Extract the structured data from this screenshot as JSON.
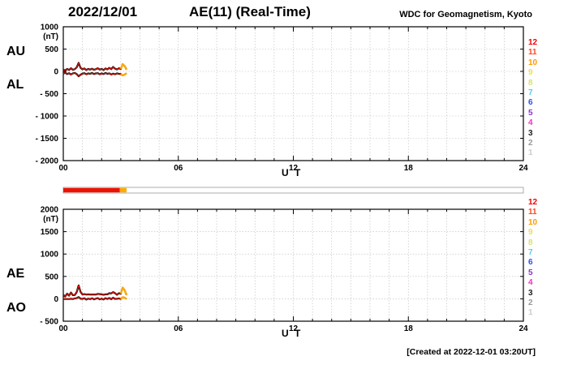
{
  "header": {
    "date": "2022/12/01",
    "title": "AE(11) (Real-Time)",
    "source": "WDC for Geomagnetism, Kyoto"
  },
  "footer": {
    "created": "[Created at 2022-12-01 03:20UT]"
  },
  "panels": [
    {
      "left_labels": [
        "AU",
        "AL"
      ]
    },
    {
      "left_labels": [
        "AE",
        "AO"
      ]
    }
  ],
  "legend": {
    "items": [
      {
        "n": "12",
        "color": "#ee0000"
      },
      {
        "n": "11",
        "color": "#ff4422"
      },
      {
        "n": "10",
        "color": "#ff9900"
      },
      {
        "n": "9",
        "color": "#eedd55"
      },
      {
        "n": "8",
        "color": "#d8e070"
      },
      {
        "n": "7",
        "color": "#55ccee"
      },
      {
        "n": "6",
        "color": "#2b50ee"
      },
      {
        "n": "5",
        "color": "#8833cc"
      },
      {
        "n": "4",
        "color": "#ee33bb"
      },
      {
        "n": "3",
        "color": "#222222"
      },
      {
        "n": "2",
        "color": "#999999"
      },
      {
        "n": "1",
        "color": "#cccccc"
      }
    ]
  },
  "colorbar": {
    "range_hours": 24,
    "segments": [
      {
        "from_hour": 0,
        "to_hour": 2.95,
        "color": "#ee1100"
      },
      {
        "from_hour": 2.95,
        "to_hour": 3.3,
        "color": "#ffaa00"
      }
    ]
  },
  "chart_data": [
    {
      "type": "line",
      "title": "AU / AL auroral electrojet indices",
      "xlabel": "U T",
      "ylabel": "(nT)",
      "xlim": [
        0,
        24
      ],
      "xticks": [
        0,
        6,
        12,
        18,
        24
      ],
      "xtick_labels": [
        "00",
        "06",
        "12",
        "18",
        "24"
      ],
      "ylim": [
        -2000,
        1000
      ],
      "ytick_step": 500,
      "ytick_labels_top_to_bottom": [
        "1000",
        "500",
        "0",
        "- 500",
        "- 1000",
        "- 1500",
        "- 2000"
      ],
      "grid": true,
      "recent_from_hour": 2.95,
      "colors": {
        "outline": "#000000",
        "line": "#ee1100",
        "recent": "#ffaa00"
      },
      "x": [
        0,
        0.1,
        0.2,
        0.3,
        0.4,
        0.5,
        0.6,
        0.7,
        0.8,
        0.9,
        1,
        1.1,
        1.2,
        1.3,
        1.4,
        1.5,
        1.6,
        1.7,
        1.8,
        1.9,
        2,
        2.1,
        2.2,
        2.3,
        2.4,
        2.5,
        2.6,
        2.7,
        2.8,
        2.9,
        3,
        3.1,
        3.2,
        3.3
      ],
      "series": [
        {
          "name": "AU",
          "values": [
            40,
            20,
            55,
            30,
            70,
            35,
            50,
            90,
            190,
            80,
            45,
            65,
            30,
            55,
            40,
            60,
            35,
            50,
            70,
            40,
            55,
            30,
            65,
            45,
            80,
            50,
            100,
            60,
            45,
            70,
            55,
            160,
            120,
            40
          ]
        },
        {
          "name": "AL",
          "values": [
            -50,
            -30,
            -60,
            -40,
            -70,
            -45,
            -35,
            -60,
            -110,
            -75,
            -50,
            -40,
            -65,
            -45,
            -55,
            -35,
            -60,
            -45,
            -40,
            -65,
            -45,
            -60,
            -35,
            -55,
            -45,
            -70,
            -50,
            -65,
            -45,
            -55,
            -60,
            -90,
            -70,
            -45
          ]
        }
      ]
    },
    {
      "type": "line",
      "title": "AE / AO auroral electrojet indices",
      "xlabel": "U T",
      "ylabel": "(nT)",
      "xlim": [
        0,
        24
      ],
      "xticks": [
        0,
        6,
        12,
        18,
        24
      ],
      "xtick_labels": [
        "00",
        "06",
        "12",
        "18",
        "24"
      ],
      "ylim": [
        -500,
        2000
      ],
      "ytick_step": 500,
      "ytick_labels_top_to_bottom": [
        "2000",
        "1500",
        "1000",
        "500",
        "0",
        "- 500"
      ],
      "grid": true,
      "recent_from_hour": 2.95,
      "colors": {
        "outline": "#000000",
        "line": "#ee1100",
        "recent": "#ffaa00"
      },
      "x": [
        0,
        0.1,
        0.2,
        0.3,
        0.4,
        0.5,
        0.6,
        0.7,
        0.8,
        0.9,
        1,
        1.1,
        1.2,
        1.3,
        1.4,
        1.5,
        1.6,
        1.7,
        1.8,
        1.9,
        2,
        2.1,
        2.2,
        2.3,
        2.4,
        2.5,
        2.6,
        2.7,
        2.8,
        2.9,
        3,
        3.1,
        3.2,
        3.3
      ],
      "series": [
        {
          "name": "AE",
          "values": [
            90,
            50,
            115,
            70,
            140,
            80,
            85,
            150,
            300,
            155,
            95,
            105,
            95,
            100,
            95,
            95,
            95,
            95,
            110,
            105,
            100,
            90,
            100,
            100,
            125,
            120,
            150,
            125,
            90,
            125,
            115,
            250,
            190,
            85
          ]
        },
        {
          "name": "AO",
          "values": [
            -5,
            -5,
            -3,
            -5,
            0,
            -5,
            8,
            15,
            40,
            3,
            -3,
            13,
            -18,
            5,
            -8,
            13,
            -13,
            3,
            15,
            -13,
            5,
            -15,
            15,
            -5,
            18,
            -10,
            25,
            -3,
            0,
            8,
            -3,
            35,
            25,
            -3
          ]
        }
      ]
    }
  ]
}
